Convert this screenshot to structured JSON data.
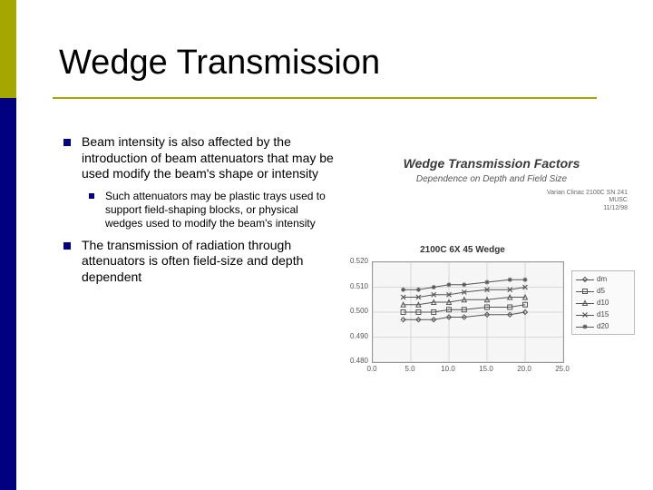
{
  "title": "Wedge Transmission",
  "bullets": {
    "b1": "Beam intensity is also affected by the introduction of beam attenuators that may be used modify the beam's shape or intensity",
    "b1_sub": "Such attenuators may be plastic trays used to support field-shaping blocks, or physical wedges used to modify the beam's intensity",
    "b2": "The transmission of radiation through attenuators is often field-size and depth dependent"
  },
  "chart": {
    "panel_title": "Wedge Transmission Factors",
    "panel_subtitle": "Dependence on Depth and Field Size",
    "meta1": "Varian Clinac 2100C SN 241",
    "meta2": "MUSC",
    "meta3": "11/12/98",
    "inner_title": "2100C 6X 45 Wedge",
    "type": "line",
    "xlim": [
      0.0,
      25.0
    ],
    "ylim": [
      0.48,
      0.52
    ],
    "xticks": [
      0.0,
      5.0,
      10.0,
      15.0,
      20.0,
      25.0
    ],
    "yticks": [
      0.48,
      0.49,
      0.5,
      0.51,
      0.52
    ],
    "xtick_labels": [
      "0.0",
      "5.0",
      "10.0",
      "15.0",
      "20.0",
      "25.0"
    ],
    "ytick_labels": [
      "0.480",
      "0.490",
      "0.500",
      "0.510",
      "0.520"
    ],
    "background_color": "#f6f6f6",
    "grid_color": "#d8d8d8",
    "axis_color": "#999999",
    "line_color": "#555555",
    "line_width": 1,
    "marker_size": 5,
    "x_values": [
      4,
      6,
      8,
      10,
      12,
      15,
      18,
      20
    ],
    "series": [
      {
        "name": "dm",
        "marker": "diamond",
        "y": [
          0.497,
          0.497,
          0.497,
          0.498,
          0.498,
          0.499,
          0.499,
          0.5
        ]
      },
      {
        "name": "d5",
        "marker": "square",
        "y": [
          0.5,
          0.5,
          0.5,
          0.501,
          0.501,
          0.502,
          0.502,
          0.503
        ]
      },
      {
        "name": "d10",
        "marker": "triangle",
        "y": [
          0.503,
          0.503,
          0.504,
          0.504,
          0.505,
          0.505,
          0.506,
          0.506
        ]
      },
      {
        "name": "d15",
        "marker": "cross",
        "y": [
          0.506,
          0.506,
          0.507,
          0.507,
          0.508,
          0.509,
          0.509,
          0.51
        ]
      },
      {
        "name": "d20",
        "marker": "star",
        "y": [
          0.509,
          0.509,
          0.51,
          0.511,
          0.511,
          0.512,
          0.513,
          0.513
        ]
      }
    ]
  },
  "colors": {
    "accent1": "#a6a600",
    "accent2": "#000080"
  }
}
